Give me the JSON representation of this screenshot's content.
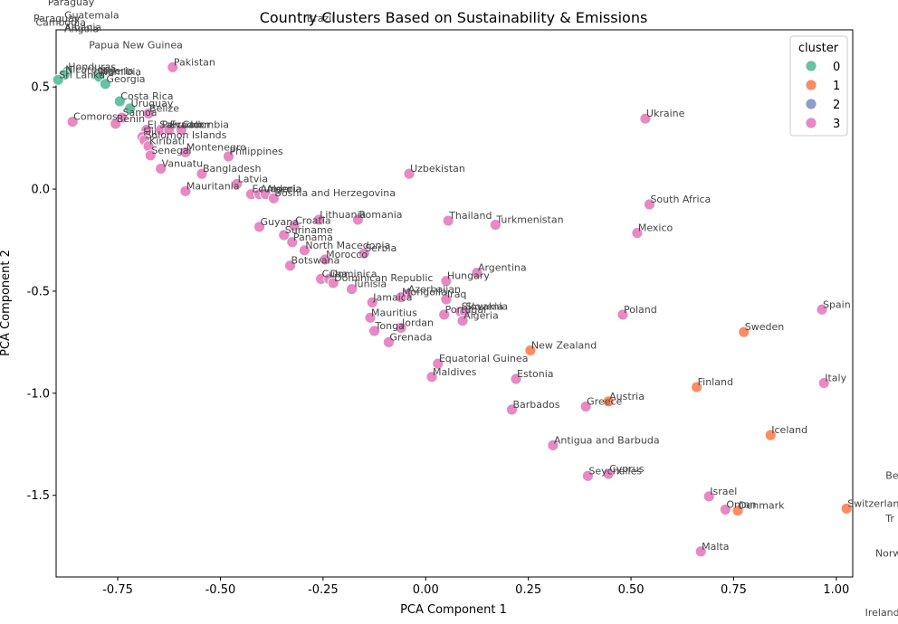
{
  "chart_data": {
    "type": "scatter",
    "title": "Country Clusters Based on Sustainability & Emissions",
    "xlabel": "PCA Component 1",
    "ylabel": "PCA Component 2",
    "xlim": [
      -0.9,
      1.04
    ],
    "ylim": [
      -1.9,
      0.78
    ],
    "x_ticks": [
      "-0.75",
      "-0.50",
      "-0.25",
      "0.00",
      "0.25",
      "0.50",
      "0.75",
      "1.00"
    ],
    "y_ticks": [
      "-1.5",
      "-1.0",
      "-0.5",
      "0.0",
      "0.5"
    ],
    "legend": {
      "title": "cluster",
      "placement": "top-right",
      "entries": [
        {
          "label": "0",
          "color": "#66c2a5"
        },
        {
          "label": "1",
          "color": "#fc8d62"
        },
        {
          "label": "2",
          "color": "#8da0cb"
        },
        {
          "label": "3",
          "color": "#e78ac3"
        }
      ]
    },
    "points": [
      {
        "label": "Honduras",
        "x": -0.873,
        "y": 0.575,
        "cluster": 0
      },
      {
        "label": "Nicaragua",
        "x": -0.88,
        "y": 0.56,
        "cluster": 0
      },
      {
        "label": "Nigeria",
        "x": -0.8,
        "y": 0.555,
        "cluster": 0
      },
      {
        "label": "Namibia",
        "x": -0.795,
        "y": 0.55,
        "cluster": 0
      },
      {
        "label": "Sri Lanka",
        "x": -0.895,
        "y": 0.535,
        "cluster": 0
      },
      {
        "label": "Georgia",
        "x": -0.78,
        "y": 0.515,
        "cluster": 0
      },
      {
        "label": "Costa Rica",
        "x": -0.745,
        "y": 0.43,
        "cluster": 0
      },
      {
        "label": "Uruguay",
        "x": -0.72,
        "y": 0.395,
        "cluster": 0
      },
      {
        "label": "Pakistan",
        "x": -0.616,
        "y": 0.597,
        "cluster": 3
      },
      {
        "label": "Belize",
        "x": -0.675,
        "y": 0.37,
        "cluster": 3
      },
      {
        "label": "Samoa",
        "x": -0.74,
        "y": 0.35,
        "cluster": 3
      },
      {
        "label": "Comoros",
        "x": -0.86,
        "y": 0.33,
        "cluster": 3
      },
      {
        "label": "Benin",
        "x": -0.755,
        "y": 0.32,
        "cluster": 3
      },
      {
        "label": "El Salvador",
        "x": -0.68,
        "y": 0.29,
        "cluster": 3
      },
      {
        "label": "Peru",
        "x": -0.645,
        "y": 0.29,
        "cluster": 3
      },
      {
        "label": "Ecuador",
        "x": -0.625,
        "y": 0.29,
        "cluster": 3
      },
      {
        "label": "Colombia",
        "x": -0.595,
        "y": 0.29,
        "cluster": 3
      },
      {
        "label": "Fiji",
        "x": -0.69,
        "y": 0.255,
        "cluster": 3
      },
      {
        "label": "Solomon Islands",
        "x": -0.685,
        "y": 0.24,
        "cluster": 3
      },
      {
        "label": "Kiribati",
        "x": -0.675,
        "y": 0.21,
        "cluster": 3
      },
      {
        "label": "Montenegro",
        "x": -0.585,
        "y": 0.18,
        "cluster": 3
      },
      {
        "label": "Senegal",
        "x": -0.67,
        "y": 0.165,
        "cluster": 3
      },
      {
        "label": "Philippines",
        "x": -0.48,
        "y": 0.16,
        "cluster": 3
      },
      {
        "label": "Vanuatu",
        "x": -0.645,
        "y": 0.1,
        "cluster": 3
      },
      {
        "label": "Bangladesh",
        "x": -0.545,
        "y": 0.075,
        "cluster": 3
      },
      {
        "label": "Latvia",
        "x": -0.46,
        "y": 0.025,
        "cluster": 3
      },
      {
        "label": "Mauritania",
        "x": -0.585,
        "y": -0.01,
        "cluster": 3
      },
      {
        "label": "Estonia",
        "x": 0.22,
        "y": -0.93,
        "cluster": 3
      },
      {
        "label": "Ecuador",
        "x": -0.425,
        "y": -0.025,
        "cluster": 3
      },
      {
        "label": "Armenia",
        "x": -0.405,
        "y": -0.025,
        "cluster": 3
      },
      {
        "label": "Algeria",
        "x": -0.39,
        "y": -0.025,
        "cluster": 3
      },
      {
        "label": "Bosnia and Herzegovina",
        "x": -0.37,
        "y": -0.045,
        "cluster": 3
      },
      {
        "label": "Uzbekistan",
        "x": -0.04,
        "y": 0.075,
        "cluster": 3
      },
      {
        "label": "Lithuania",
        "x": -0.26,
        "y": -0.15,
        "cluster": 3
      },
      {
        "label": "Romania",
        "x": -0.165,
        "y": -0.15,
        "cluster": 3
      },
      {
        "label": "Croatia",
        "x": -0.32,
        "y": -0.18,
        "cluster": 3
      },
      {
        "label": "Guyana",
        "x": -0.405,
        "y": -0.185,
        "cluster": 3
      },
      {
        "label": "Suriname",
        "x": -0.345,
        "y": -0.225,
        "cluster": 3
      },
      {
        "label": "Panama",
        "x": -0.325,
        "y": -0.26,
        "cluster": 3
      },
      {
        "label": "North Macedonia",
        "x": -0.295,
        "y": -0.3,
        "cluster": 3
      },
      {
        "label": "Serbia",
        "x": -0.15,
        "y": -0.315,
        "cluster": 3
      },
      {
        "label": "Jordan",
        "x": -0.06,
        "y": -0.68,
        "cluster": 3
      },
      {
        "label": "Morocco",
        "x": -0.245,
        "y": -0.345,
        "cluster": 3
      },
      {
        "label": "Botswana",
        "x": -0.33,
        "y": -0.375,
        "cluster": 3
      },
      {
        "label": "Cuba",
        "x": -0.255,
        "y": -0.44,
        "cluster": 3
      },
      {
        "label": "Dominica",
        "x": -0.235,
        "y": -0.44,
        "cluster": 3
      },
      {
        "label": "Dominican Republic",
        "x": -0.225,
        "y": -0.46,
        "cluster": 3
      },
      {
        "label": "Tunisia",
        "x": -0.18,
        "y": -0.49,
        "cluster": 3
      },
      {
        "label": "Azerbaijan",
        "x": -0.045,
        "y": -0.515,
        "cluster": 3
      },
      {
        "label": "Mongolia",
        "x": -0.06,
        "y": -0.53,
        "cluster": 3
      },
      {
        "label": "Jamaica",
        "x": -0.13,
        "y": -0.555,
        "cluster": 3
      },
      {
        "label": "Mauritius",
        "x": -0.135,
        "y": -0.63,
        "cluster": 3
      },
      {
        "label": "Tonga",
        "x": -0.125,
        "y": -0.695,
        "cluster": 3
      },
      {
        "label": "Grenada",
        "x": -0.09,
        "y": -0.75,
        "cluster": 3
      },
      {
        "label": "Thailand",
        "x": 0.055,
        "y": -0.155,
        "cluster": 3
      },
      {
        "label": "Turkmenistan",
        "x": 0.17,
        "y": -0.175,
        "cluster": 3
      },
      {
        "label": "Ukraine",
        "x": 0.535,
        "y": 0.345,
        "cluster": 3
      },
      {
        "label": "South Africa",
        "x": 0.545,
        "y": -0.075,
        "cluster": 3
      },
      {
        "label": "Mexico",
        "x": 0.515,
        "y": -0.215,
        "cluster": 3
      },
      {
        "label": "Argentina",
        "x": 0.125,
        "y": -0.41,
        "cluster": 3
      },
      {
        "label": "Hungary",
        "x": 0.05,
        "y": -0.45,
        "cluster": 3
      },
      {
        "label": "Iraq",
        "x": 0.05,
        "y": -0.54,
        "cluster": 3
      },
      {
        "label": "Slovakia",
        "x": 0.085,
        "y": -0.6,
        "cluster": 3
      },
      {
        "label": "Slovenia",
        "x": 0.095,
        "y": -0.6,
        "cluster": 3
      },
      {
        "label": "Portugal",
        "x": 0.045,
        "y": -0.615,
        "cluster": 3
      },
      {
        "label": "Algeria",
        "x": 0.09,
        "y": -0.645,
        "cluster": 3
      },
      {
        "label": "Poland",
        "x": 0.48,
        "y": -0.615,
        "cluster": 3
      },
      {
        "label": "Equatorial Guinea",
        "x": 0.03,
        "y": -0.855,
        "cluster": 3
      },
      {
        "label": "Maldives",
        "x": 0.015,
        "y": -0.92,
        "cluster": 3
      },
      {
        "label": "Barbados",
        "x": 0.21,
        "y": -1.08,
        "cluster": 3
      },
      {
        "label": "Greece",
        "x": 0.39,
        "y": -1.065,
        "cluster": 3
      },
      {
        "label": "Antigua and Barbuda",
        "x": 0.31,
        "y": -1.255,
        "cluster": 3
      },
      {
        "label": "Cyprus",
        "x": 0.445,
        "y": -1.395,
        "cluster": 3
      },
      {
        "label": "Seychelles",
        "x": 0.395,
        "y": -1.405,
        "cluster": 3
      },
      {
        "label": "Israel",
        "x": 0.69,
        "y": -1.505,
        "cluster": 3
      },
      {
        "label": "Oman",
        "x": 0.73,
        "y": -1.57,
        "cluster": 3
      },
      {
        "label": "Malta",
        "x": 0.67,
        "y": -1.775,
        "cluster": 3
      },
      {
        "label": "Spain",
        "x": 0.965,
        "y": -0.59,
        "cluster": 3
      },
      {
        "label": "Italy",
        "x": 0.97,
        "y": -0.95,
        "cluster": 3
      },
      {
        "label": "New Zealand",
        "x": 0.255,
        "y": -0.79,
        "cluster": 1
      },
      {
        "label": "Austria",
        "x": 0.445,
        "y": -1.04,
        "cluster": 1
      },
      {
        "label": "Sweden",
        "x": 0.775,
        "y": -0.7,
        "cluster": 1
      },
      {
        "label": "Finland",
        "x": 0.66,
        "y": -0.97,
        "cluster": 1
      },
      {
        "label": "Iceland",
        "x": 0.84,
        "y": -1.205,
        "cluster": 1
      },
      {
        "label": "Denmark",
        "x": 0.76,
        "y": -1.575,
        "cluster": 1
      },
      {
        "label": "Switzerland",
        "x": 1.025,
        "y": -1.565,
        "cluster": 1
      }
    ],
    "outside_labels": [
      {
        "label": "Paraguay",
        "x": -0.92,
        "y": 0.9
      },
      {
        "label": "Guatemala",
        "x": -0.88,
        "y": 0.835
      },
      {
        "label": "Paraguay",
        "x": -0.955,
        "y": 0.82
      },
      {
        "label": "Cambodia",
        "x": -0.95,
        "y": 0.8
      },
      {
        "label": "Angola",
        "x": -0.88,
        "y": 0.77
      },
      {
        "label": "Albania",
        "x": -0.88,
        "y": 0.775
      },
      {
        "label": "Brazil",
        "x": -0.29,
        "y": 0.82
      },
      {
        "label": "Papua New Guinea",
        "x": -0.82,
        "y": 0.69
      },
      {
        "label": "Belgium",
        "x": 1.12,
        "y": -1.42
      },
      {
        "label": "Tr",
        "x": 1.12,
        "y": -1.63
      },
      {
        "label": "Norw",
        "x": 1.095,
        "y": -1.8
      },
      {
        "label": "Ireland",
        "x": 1.07,
        "y": -2.09
      }
    ]
  }
}
